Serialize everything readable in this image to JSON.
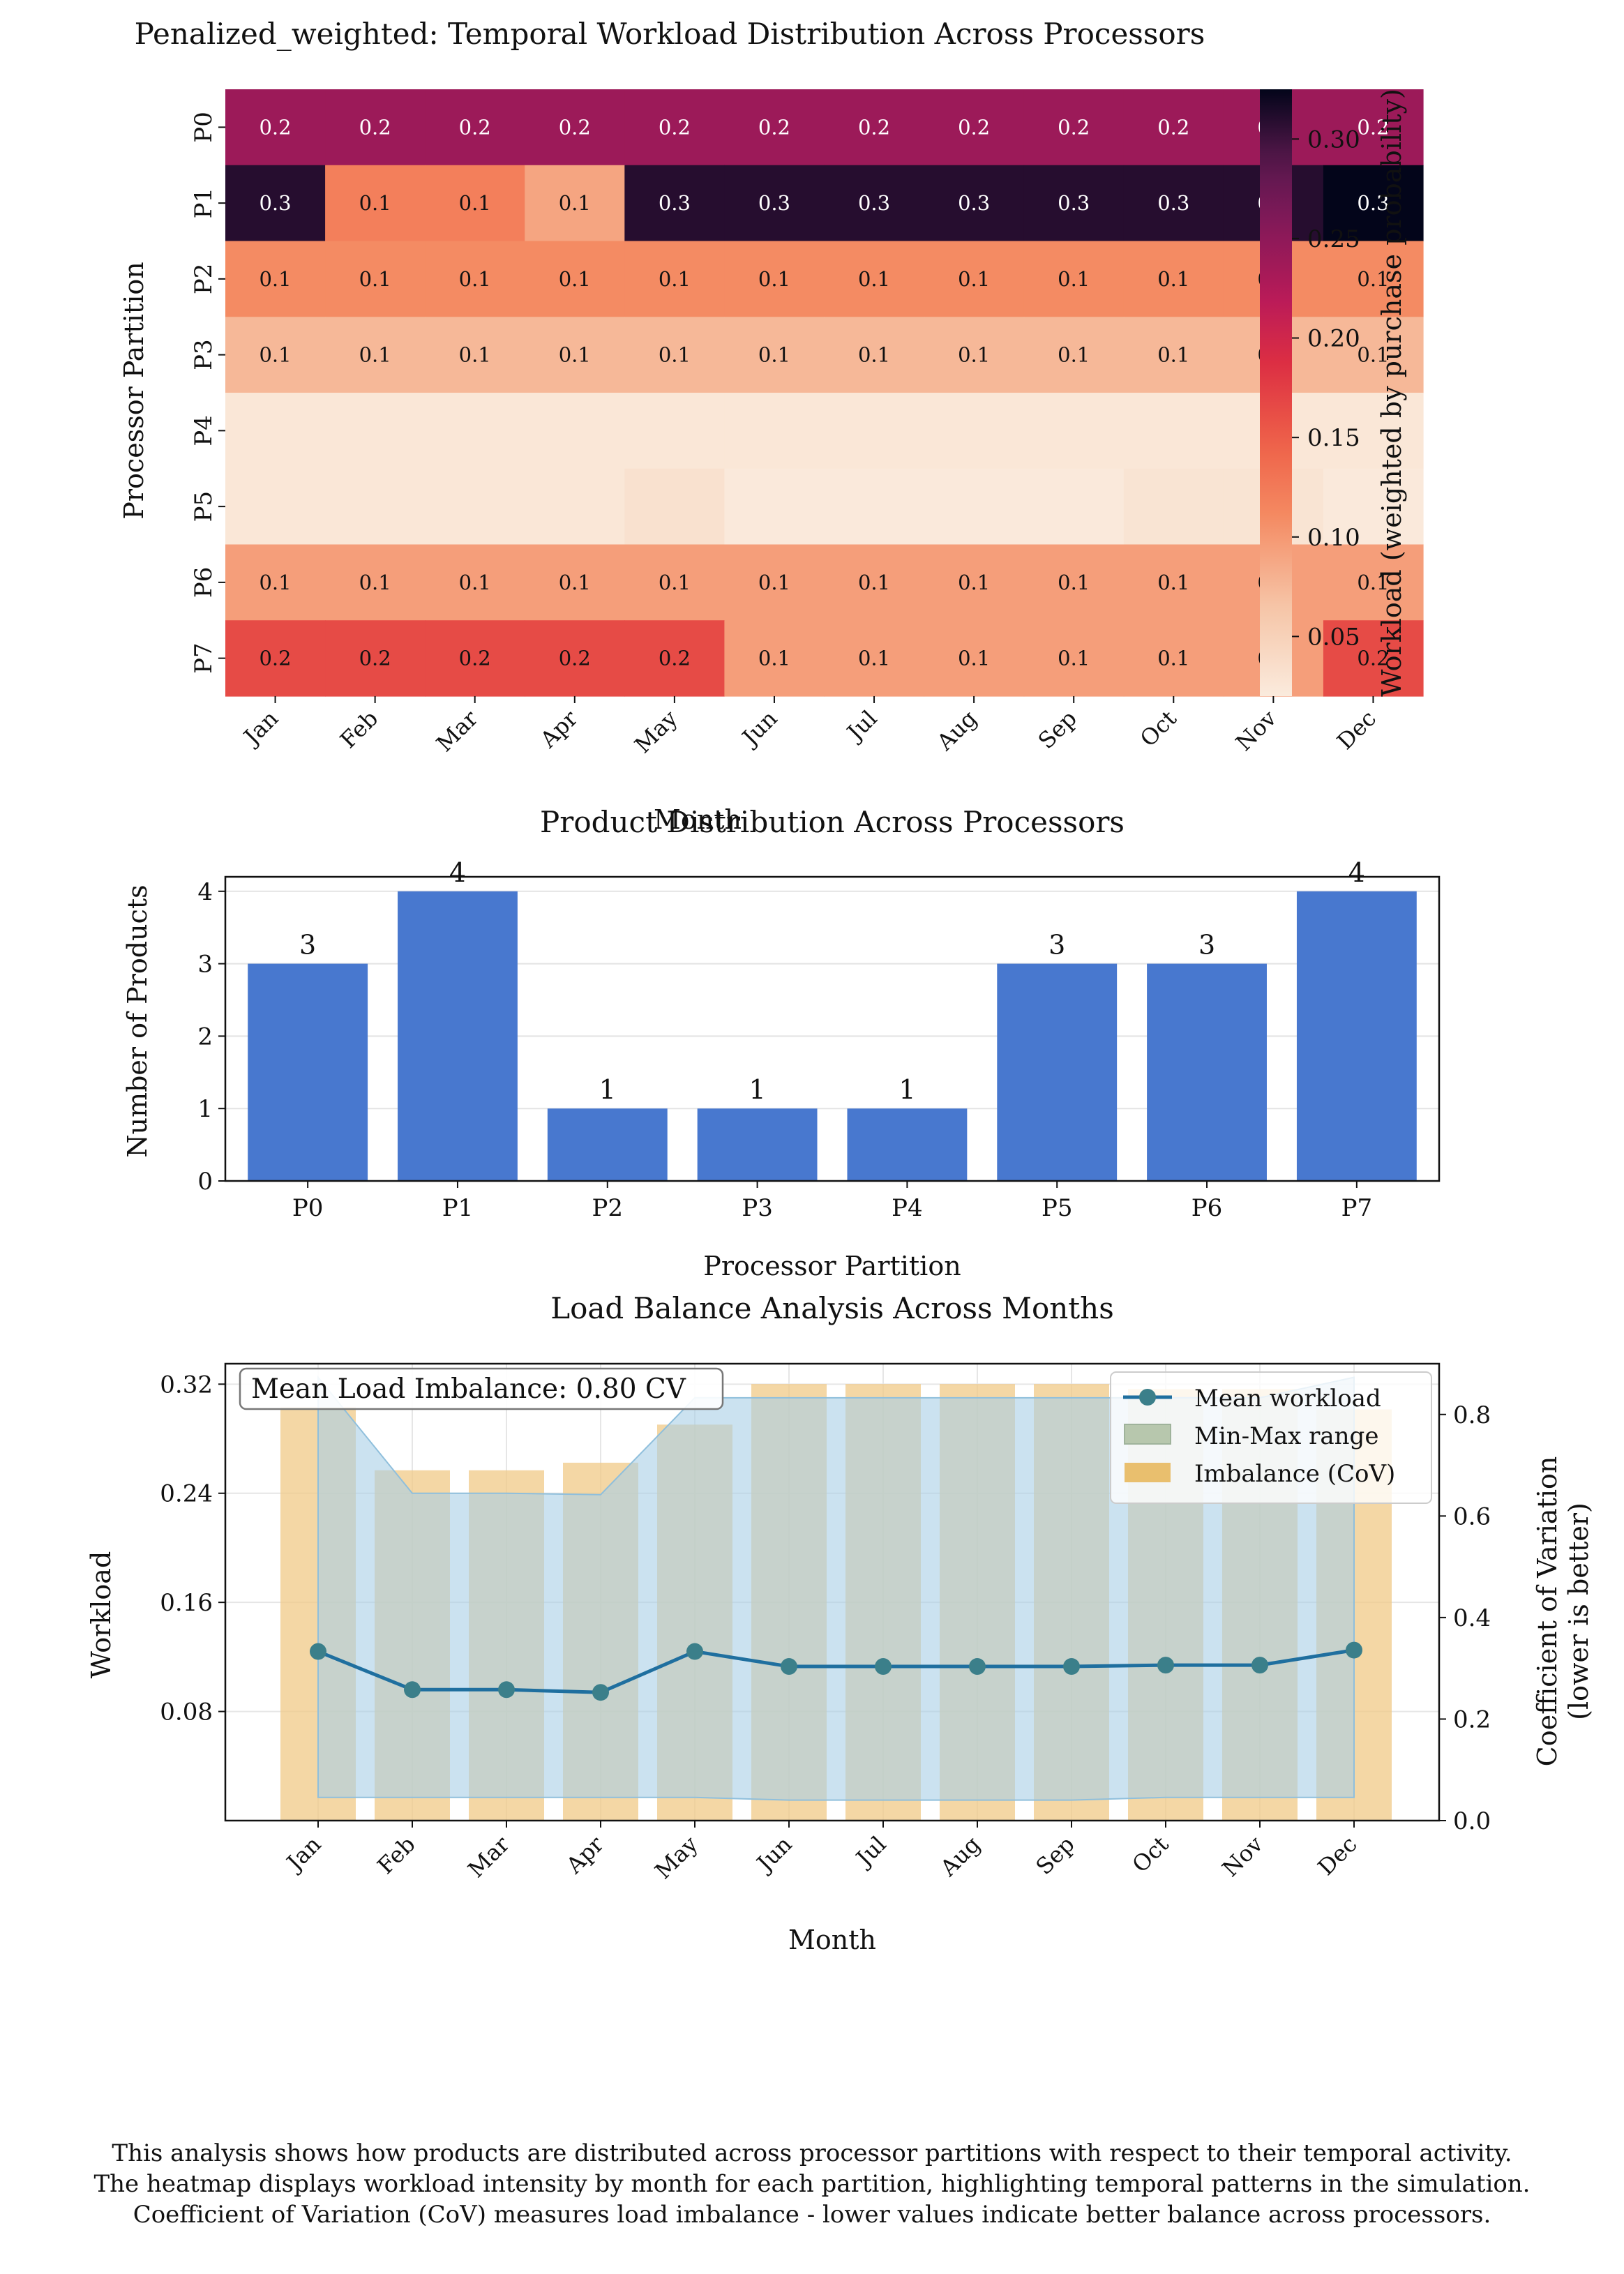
{
  "chart_data": [
    {
      "type": "heatmap",
      "title": "Penalized_weighted: Temporal Workload Distribution Across Processors",
      "xlabel": "Month",
      "ylabel": "Processor Partition",
      "x": [
        "Jan",
        "Feb",
        "Mar",
        "Apr",
        "May",
        "Jun",
        "Jul",
        "Aug",
        "Sep",
        "Oct",
        "Nov",
        "Dec"
      ],
      "y": [
        "P0",
        "P1",
        "P2",
        "P3",
        "P4",
        "P5",
        "P6",
        "P7"
      ],
      "values": [
        [
          0.24,
          0.24,
          0.24,
          0.24,
          0.24,
          0.24,
          0.24,
          0.24,
          0.24,
          0.24,
          0.24,
          0.24
        ],
        [
          0.31,
          0.12,
          0.12,
          0.09,
          0.31,
          0.31,
          0.31,
          0.31,
          0.31,
          0.31,
          0.31,
          0.325
        ],
        [
          0.11,
          0.11,
          0.11,
          0.11,
          0.11,
          0.11,
          0.11,
          0.11,
          0.11,
          0.11,
          0.11,
          0.11
        ],
        [
          0.075,
          0.075,
          0.075,
          0.075,
          0.075,
          0.075,
          0.075,
          0.075,
          0.075,
          0.075,
          0.075,
          0.075
        ],
        [
          0.025,
          0.025,
          0.025,
          0.025,
          0.025,
          0.025,
          0.025,
          0.025,
          0.025,
          0.025,
          0.025,
          0.025
        ],
        [
          0.025,
          0.025,
          0.025,
          0.025,
          0.032,
          0.022,
          0.022,
          0.022,
          0.022,
          0.028,
          0.028,
          0.022
        ],
        [
          0.095,
          0.095,
          0.095,
          0.095,
          0.095,
          0.095,
          0.095,
          0.095,
          0.095,
          0.095,
          0.095,
          0.095
        ],
        [
          0.165,
          0.165,
          0.165,
          0.165,
          0.165,
          0.095,
          0.095,
          0.095,
          0.095,
          0.095,
          0.095,
          0.165
        ]
      ],
      "cell_labels": [
        [
          "0.2",
          "0.2",
          "0.2",
          "0.2",
          "0.2",
          "0.2",
          "0.2",
          "0.2",
          "0.2",
          "0.2",
          "0.2",
          "0.2"
        ],
        [
          "0.3",
          "0.1",
          "0.1",
          "0.1",
          "0.3",
          "0.3",
          "0.3",
          "0.3",
          "0.3",
          "0.3",
          "0.3",
          "0.3"
        ],
        [
          "0.1",
          "0.1",
          "0.1",
          "0.1",
          "0.1",
          "0.1",
          "0.1",
          "0.1",
          "0.1",
          "0.1",
          "0.1",
          "0.1"
        ],
        [
          "0.1",
          "0.1",
          "0.1",
          "0.1",
          "0.1",
          "0.1",
          "0.1",
          "0.1",
          "0.1",
          "0.1",
          "0.1",
          "0.1"
        ],
        [
          "",
          "",
          "",
          "",
          "",
          "",
          "",
          "",
          "",
          "",
          "",
          ""
        ],
        [
          "",
          "",
          "",
          "",
          "",
          "",
          "",
          "",
          "",
          "",
          "",
          ""
        ],
        [
          "0.1",
          "0.1",
          "0.1",
          "0.1",
          "0.1",
          "0.1",
          "0.1",
          "0.1",
          "0.1",
          "0.1",
          "0.1",
          "0.1"
        ],
        [
          "0.2",
          "0.2",
          "0.2",
          "0.2",
          "0.2",
          "0.1",
          "0.1",
          "0.1",
          "0.1",
          "0.1",
          "0.1",
          "0.2"
        ]
      ],
      "colorbar": {
        "label": "Workload (weighted by purchase probability)",
        "range": [
          0.02,
          0.325
        ],
        "ticks": [
          0.05,
          0.1,
          0.15,
          0.2,
          0.25,
          0.3
        ],
        "tick_labels": [
          "0.05",
          "0.10",
          "0.15",
          "0.20",
          "0.25",
          "0.30"
        ],
        "colormap": "rocket_r"
      }
    },
    {
      "type": "bar",
      "title": "Product Distribution Across Processors",
      "xlabel": "Processor Partition",
      "ylabel": "Number of Products",
      "categories": [
        "P0",
        "P1",
        "P2",
        "P3",
        "P4",
        "P5",
        "P6",
        "P7"
      ],
      "values": [
        3,
        4,
        1,
        1,
        1,
        3,
        3,
        4
      ],
      "ylim": [
        0,
        4.2
      ],
      "yticks": [
        "0",
        "1",
        "2",
        "3",
        "4"
      ],
      "grid": true,
      "bar_color": "#4878cf"
    },
    {
      "type": "line",
      "title": "Load Balance Analysis Across Months",
      "xlabel": "Month",
      "ylabel": "Workload",
      "y2label_line1": "Coefficient of Variation",
      "y2label_line2": "(lower is better)",
      "categories": [
        "Jan",
        "Feb",
        "Mar",
        "Apr",
        "May",
        "Jun",
        "Jul",
        "Aug",
        "Sep",
        "Oct",
        "Nov",
        "Dec"
      ],
      "ylim": [
        0,
        0.335
      ],
      "yticks": [
        "0.08",
        "0.16",
        "0.24",
        "0.32"
      ],
      "y2lim": [
        0,
        0.9
      ],
      "y2ticks": [
        "0.0",
        "0.2",
        "0.4",
        "0.6",
        "0.8"
      ],
      "series": [
        {
          "name": "Mean workload",
          "values": [
            0.124,
            0.096,
            0.096,
            0.094,
            0.124,
            0.113,
            0.113,
            0.113,
            0.113,
            0.114,
            0.114,
            0.125
          ],
          "color": "#1f77b4"
        },
        {
          "name": "Min-Max range",
          "min": [
            0.017,
            0.017,
            0.017,
            0.017,
            0.017,
            0.015,
            0.015,
            0.015,
            0.015,
            0.017,
            0.017,
            0.017
          ],
          "max": [
            0.325,
            0.24,
            0.24,
            0.239,
            0.31,
            0.31,
            0.31,
            0.31,
            0.31,
            0.31,
            0.31,
            0.325
          ],
          "color": "#a9cfe6"
        },
        {
          "name": "Imbalance (CoV)",
          "values": [
            0.815,
            0.69,
            0.69,
            0.705,
            0.78,
            0.86,
            0.86,
            0.86,
            0.86,
            0.85,
            0.85,
            0.81
          ],
          "color": "#f0c987"
        }
      ],
      "annotation": "Mean Load Imbalance: 0.80 CV",
      "legend_position": "top-right",
      "grid": true
    }
  ],
  "footnote": [
    "This analysis shows how products are distributed across processor partitions with respect to their temporal activity.",
    "The heatmap displays workload intensity by month for each partition, highlighting temporal patterns in the simulation.",
    "Coefficient of Variation (CoV) measures load imbalance - lower values indicate better balance across processors."
  ]
}
